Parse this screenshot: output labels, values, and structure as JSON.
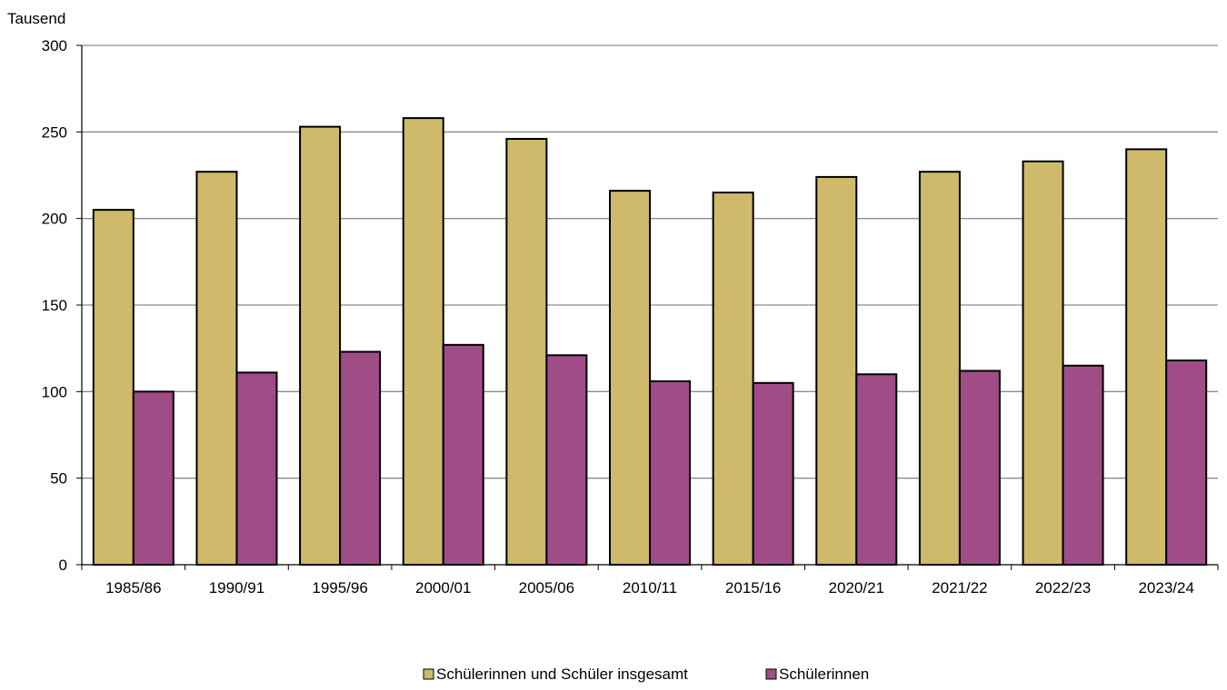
{
  "chart_data": {
    "type": "bar",
    "ylabel": "Tausend",
    "ylim": [
      0,
      300
    ],
    "yticks": [
      0,
      50,
      100,
      150,
      200,
      250,
      300
    ],
    "grid": true,
    "legend_position": "bottom",
    "categories": [
      "1985/86",
      "1990/91",
      "1995/96",
      "2000/01",
      "2005/06",
      "2010/11",
      "2015/16",
      "2020/21",
      "2021/22",
      "2022/23",
      "2023/24"
    ],
    "series": [
      {
        "name": "Schülerinnen und Schüler insgesamt",
        "color": "#cfba6c",
        "values": [
          205,
          227,
          253,
          258,
          246,
          216,
          215,
          224,
          227,
          233,
          240
        ]
      },
      {
        "name": "Schülerinnen",
        "color": "#a04c87",
        "values": [
          100,
          111,
          123,
          127,
          121,
          106,
          105,
          110,
          112,
          115,
          118
        ]
      }
    ]
  }
}
